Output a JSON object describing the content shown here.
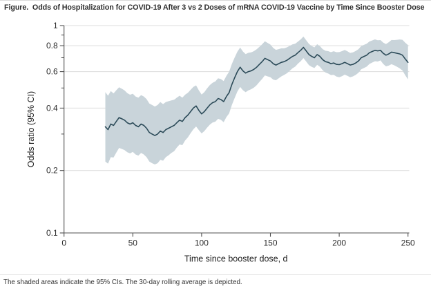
{
  "figure": {
    "title": "Figure.  Odds of Hospitalization for COVID-19 After 3 vs 2 Doses of mRNA COVID-19 Vaccine by Time Since Booster Dose",
    "footnote": "The shaded areas indicate the 95% CIs. The 30-day rolling average is depicted."
  },
  "colors": {
    "line": "#2b4a58",
    "band": "#c9d4da",
    "grid": "#dcdcdc",
    "spine": "#4f4f4f",
    "text": "#2b2b2b"
  },
  "chart_data": {
    "type": "line",
    "title": "Odds of Hospitalization for COVID-19 After 3 vs 2 Doses of mRNA COVID-19 Vaccine by Time Since Booster Dose",
    "xlabel": "Time since booster dose, d",
    "ylabel": "Odds ratio (95% CI)",
    "xlim": [
      0,
      250
    ],
    "ylim": [
      0.1,
      1
    ],
    "y_scale": "log",
    "grid": "horizontal",
    "gridlines_at": [
      1,
      0.8,
      0.6,
      0.4,
      0.2
    ],
    "x_ticks": [
      {
        "value": 0,
        "label": "0"
      },
      {
        "value": 50,
        "label": "50"
      },
      {
        "value": 100,
        "label": "100"
      },
      {
        "value": 150,
        "label": "150"
      },
      {
        "value": 200,
        "label": "200"
      },
      {
        "value": 250,
        "label": "250"
      }
    ],
    "y_ticks": [
      {
        "value": 1,
        "label": "1"
      },
      {
        "value": 0.8,
        "label": "0.8"
      },
      {
        "value": 0.6,
        "label": "0.6"
      },
      {
        "value": 0.4,
        "label": "0.4"
      },
      {
        "value": 0.2,
        "label": "0.2"
      },
      {
        "value": 0.1,
        "label": "0.1"
      }
    ],
    "y_minor_ticks": [
      0.9,
      0.7,
      0.5,
      0.3
    ],
    "series": [
      {
        "name": "Odds ratio, 30-day rolling average",
        "x": [
          30,
          32,
          34,
          36,
          38,
          40,
          42,
          44,
          46,
          48,
          50,
          52,
          54,
          56,
          58,
          60,
          62,
          64,
          66,
          68,
          70,
          72,
          74,
          76,
          78,
          80,
          82,
          84,
          86,
          88,
          90,
          92,
          94,
          96,
          98,
          100,
          102,
          104,
          106,
          108,
          110,
          112,
          114,
          116,
          118,
          120,
          122,
          124,
          126,
          128,
          130,
          132,
          134,
          136,
          138,
          140,
          142,
          144,
          146,
          148,
          150,
          152,
          154,
          156,
          158,
          160,
          162,
          164,
          166,
          168,
          170,
          172,
          174,
          176,
          178,
          180,
          182,
          184,
          186,
          188,
          190,
          192,
          194,
          196,
          198,
          200,
          202,
          204,
          206,
          208,
          210,
          212,
          214,
          216,
          218,
          220,
          222,
          224,
          226,
          228,
          230,
          232,
          234,
          236,
          238,
          240,
          242,
          244,
          246,
          248,
          250
        ],
        "y": [
          0.325,
          0.315,
          0.335,
          0.33,
          0.345,
          0.36,
          0.355,
          0.35,
          0.34,
          0.335,
          0.34,
          0.33,
          0.325,
          0.335,
          0.33,
          0.32,
          0.305,
          0.3,
          0.295,
          0.3,
          0.31,
          0.305,
          0.315,
          0.32,
          0.325,
          0.33,
          0.34,
          0.35,
          0.345,
          0.36,
          0.37,
          0.385,
          0.4,
          0.41,
          0.39,
          0.375,
          0.385,
          0.4,
          0.415,
          0.425,
          0.43,
          0.445,
          0.44,
          0.43,
          0.455,
          0.475,
          0.52,
          0.56,
          0.6,
          0.63,
          0.605,
          0.59,
          0.6,
          0.605,
          0.615,
          0.63,
          0.65,
          0.67,
          0.695,
          0.685,
          0.675,
          0.655,
          0.645,
          0.655,
          0.665,
          0.67,
          0.68,
          0.695,
          0.71,
          0.72,
          0.74,
          0.76,
          0.785,
          0.755,
          0.725,
          0.71,
          0.7,
          0.725,
          0.71,
          0.685,
          0.67,
          0.665,
          0.655,
          0.66,
          0.65,
          0.648,
          0.655,
          0.665,
          0.655,
          0.645,
          0.65,
          0.66,
          0.675,
          0.7,
          0.71,
          0.72,
          0.74,
          0.75,
          0.76,
          0.755,
          0.76,
          0.735,
          0.72,
          0.73,
          0.745,
          0.74,
          0.735,
          0.73,
          0.72,
          0.69,
          0.665
        ]
      }
    ],
    "band": {
      "name": "95% CI",
      "x": [
        30,
        32,
        34,
        36,
        38,
        40,
        42,
        44,
        46,
        48,
        50,
        52,
        54,
        56,
        58,
        60,
        62,
        64,
        66,
        68,
        70,
        72,
        74,
        76,
        78,
        80,
        82,
        84,
        86,
        88,
        90,
        92,
        94,
        96,
        98,
        100,
        102,
        104,
        106,
        108,
        110,
        112,
        114,
        116,
        118,
        120,
        122,
        124,
        126,
        128,
        130,
        132,
        134,
        136,
        138,
        140,
        142,
        144,
        146,
        148,
        150,
        152,
        154,
        156,
        158,
        160,
        162,
        164,
        166,
        168,
        170,
        172,
        174,
        176,
        178,
        180,
        182,
        184,
        186,
        188,
        190,
        192,
        194,
        196,
        198,
        200,
        202,
        204,
        206,
        208,
        210,
        212,
        214,
        216,
        218,
        220,
        222,
        224,
        226,
        228,
        230,
        232,
        234,
        236,
        238,
        240,
        242,
        244,
        246,
        248,
        250
      ],
      "lower": [
        0.221,
        0.216,
        0.232,
        0.231,
        0.244,
        0.257,
        0.254,
        0.251,
        0.245,
        0.242,
        0.246,
        0.239,
        0.236,
        0.243,
        0.239,
        0.232,
        0.221,
        0.217,
        0.214,
        0.217,
        0.225,
        0.223,
        0.232,
        0.237,
        0.243,
        0.248,
        0.258,
        0.267,
        0.265,
        0.279,
        0.289,
        0.303,
        0.316,
        0.326,
        0.313,
        0.302,
        0.31,
        0.322,
        0.333,
        0.341,
        0.344,
        0.355,
        0.351,
        0.342,
        0.362,
        0.377,
        0.414,
        0.447,
        0.481,
        0.506,
        0.488,
        0.477,
        0.487,
        0.493,
        0.502,
        0.516,
        0.535,
        0.553,
        0.575,
        0.569,
        0.563,
        0.549,
        0.545,
        0.557,
        0.569,
        0.578,
        0.589,
        0.605,
        0.622,
        0.634,
        0.655,
        0.673,
        0.697,
        0.671,
        0.644,
        0.632,
        0.624,
        0.647,
        0.633,
        0.609,
        0.594,
        0.587,
        0.577,
        0.579,
        0.568,
        0.563,
        0.57,
        0.58,
        0.572,
        0.563,
        0.569,
        0.578,
        0.592,
        0.615,
        0.624,
        0.634,
        0.653,
        0.663,
        0.673,
        0.671,
        0.679,
        0.653,
        0.636,
        0.641,
        0.651,
        0.643,
        0.633,
        0.622,
        0.607,
        0.576,
        0.55
      ],
      "upper": [
        0.478,
        0.459,
        0.483,
        0.471,
        0.488,
        0.504,
        0.496,
        0.487,
        0.472,
        0.464,
        0.469,
        0.455,
        0.449,
        0.462,
        0.455,
        0.442,
        0.421,
        0.414,
        0.407,
        0.414,
        0.428,
        0.418,
        0.428,
        0.432,
        0.436,
        0.439,
        0.449,
        0.459,
        0.449,
        0.464,
        0.474,
        0.49,
        0.506,
        0.515,
        0.487,
        0.465,
        0.478,
        0.498,
        0.517,
        0.53,
        0.538,
        0.557,
        0.552,
        0.54,
        0.572,
        0.599,
        0.653,
        0.701,
        0.749,
        0.784,
        0.75,
        0.729,
        0.739,
        0.743,
        0.753,
        0.769,
        0.79,
        0.812,
        0.84,
        0.825,
        0.81,
        0.781,
        0.764,
        0.77,
        0.777,
        0.777,
        0.785,
        0.798,
        0.811,
        0.818,
        0.836,
        0.858,
        0.885,
        0.85,
        0.816,
        0.797,
        0.785,
        0.813,
        0.796,
        0.77,
        0.756,
        0.753,
        0.744,
        0.752,
        0.744,
        0.745,
        0.753,
        0.763,
        0.751,
        0.738,
        0.743,
        0.754,
        0.77,
        0.797,
        0.807,
        0.817,
        0.838,
        0.848,
        0.858,
        0.85,
        0.851,
        0.828,
        0.815,
        0.831,
        0.852,
        0.851,
        0.854,
        0.857,
        0.854,
        0.827,
        0.805
      ]
    }
  }
}
